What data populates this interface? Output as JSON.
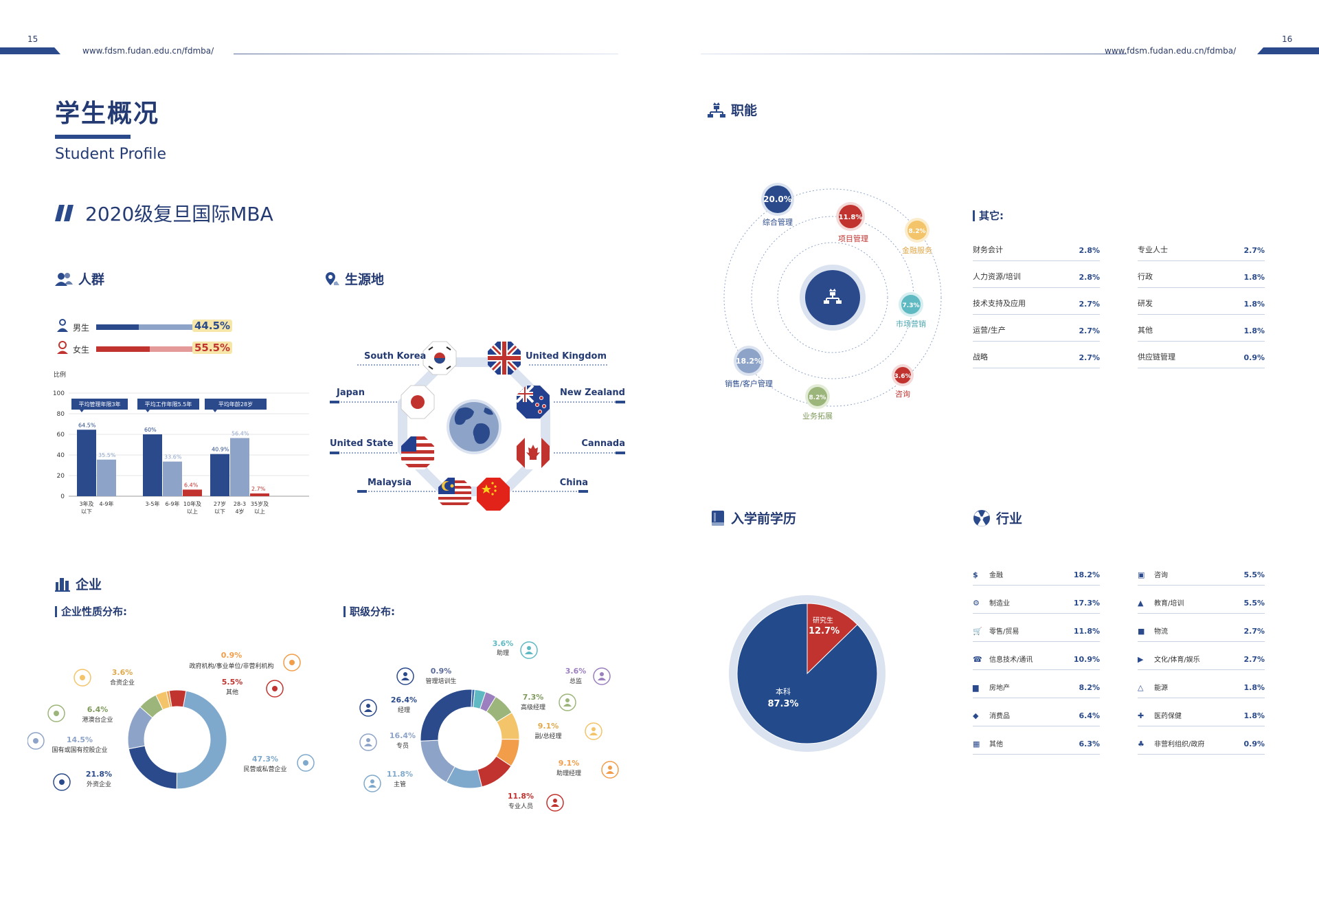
{
  "header": {
    "left_page": "15",
    "right_page": "16",
    "url_left": "www.fdsm.fudan.edu.cn/fdmba/",
    "url_right": "www.fdsm.fudan.edu.cn/fdmba/"
  },
  "title": {
    "cn": "学生概况",
    "en": "Student Profile"
  },
  "cohort": "2020级复旦国际MBA",
  "sections": {
    "crowd": "人群",
    "origin": "生源地",
    "function": "职能",
    "education": "入学前学历",
    "industry": "行业",
    "enterprise": "企业",
    "enterprise_nature": "企业性质分布:",
    "rank": "职级分布:",
    "others": "其它:"
  },
  "gender": {
    "male_label": "男生",
    "male_value": "44.5%",
    "male_pct": 44.5,
    "female_label": "女生",
    "female_value": "55.5%",
    "female_pct": 55.5
  },
  "colors": {
    "navy": "#2a4a8c",
    "steel": "#8ea3c8",
    "red": "#c0332f",
    "pink": "#e39a98",
    "highlight": "#f6e7a8",
    "teal": "#5fb9c2",
    "orange": "#f19d4a",
    "gold": "#f3c46a",
    "green": "#9cb57a",
    "lightblue": "#7fa9cc",
    "purple": "#9b7fbf"
  },
  "chart_data": [
    {
      "type": "bar",
      "id": "age-work-chart",
      "ylabel": "比例",
      "ylim": [
        0,
        100
      ],
      "yticks": [
        0,
        20,
        40,
        60,
        80,
        100
      ],
      "groups": [
        {
          "banner": "平均管理年限3年",
          "bars": [
            {
              "label": "3年及以下",
              "value": 64.5,
              "text": "64.5%",
              "color": "#2a4a8c"
            },
            {
              "label": "4-9年",
              "value": 35.5,
              "text": "35.5%",
              "color": "#8ea3c8"
            }
          ]
        },
        {
          "banner": "平均工作年限5.5年",
          "bars": [
            {
              "label": "3-5年",
              "value": 60,
              "text": "60%",
              "color": "#2a4a8c"
            },
            {
              "label": "6-9年",
              "value": 33.6,
              "text": "33.6%",
              "color": "#8ea3c8"
            },
            {
              "label": "10年及以上",
              "value": 6.4,
              "text": "6.4%",
              "color": "#c0332f"
            }
          ]
        },
        {
          "banner": "平均年龄28岁",
          "bars": [
            {
              "label": "27岁以下",
              "value": 40.9,
              "text": "40.9%",
              "color": "#2a4a8c"
            },
            {
              "label": "28-34岁",
              "value": 56.4,
              "text": "56.4%",
              "color": "#8ea3c8"
            },
            {
              "label": "35岁及以上",
              "value": 2.7,
              "text": "2.7%",
              "color": "#c0332f"
            }
          ]
        }
      ]
    },
    {
      "type": "pie",
      "id": "education-pie",
      "slices": [
        {
          "label": "研究生",
          "value": 12.7,
          "text": "12.7%",
          "color": "#c0332f"
        },
        {
          "label": "本科",
          "value": 87.3,
          "text": "87.3%",
          "color": "#234b8c"
        }
      ]
    },
    {
      "type": "pie",
      "id": "enterprise-donut",
      "slices": [
        {
          "label": "民营或私营企业",
          "value": 47.3,
          "text": "47.3%",
          "color": "#7fa9cc"
        },
        {
          "label": "外资企业",
          "value": 21.8,
          "text": "21.8%",
          "color": "#2a4a8c"
        },
        {
          "label": "国有或国有控股企业",
          "value": 14.5,
          "text": "14.5%",
          "color": "#8ea3c8"
        },
        {
          "label": "港澳台企业",
          "value": 6.4,
          "text": "6.4%",
          "color": "#9cb57a"
        },
        {
          "label": "合资企业",
          "value": 3.6,
          "text": "3.6%",
          "color": "#f3c46a"
        },
        {
          "label": "政府机构/事业单位/非营利机构",
          "value": 0.9,
          "text": "0.9%",
          "color": "#f19d4a"
        },
        {
          "label": "其他",
          "value": 5.5,
          "text": "5.5%",
          "color": "#c0332f"
        }
      ]
    },
    {
      "type": "pie",
      "id": "rank-donut",
      "slices": [
        {
          "label": "助理",
          "value": 3.6,
          "text": "3.6%",
          "color": "#5fb9c2"
        },
        {
          "label": "总监",
          "value": 3.6,
          "text": "3.6%",
          "color": "#9b7fbf"
        },
        {
          "label": "高级经理",
          "value": 7.3,
          "text": "7.3%",
          "color": "#9cb57a"
        },
        {
          "label": "副/总经理",
          "value": 9.1,
          "text": "9.1%",
          "color": "#f3c46a"
        },
        {
          "label": "助理经理",
          "value": 9.1,
          "text": "9.1%",
          "color": "#f19d4a"
        },
        {
          "label": "专业人员",
          "value": 11.8,
          "text": "11.8%",
          "color": "#c0332f"
        },
        {
          "label": "主管",
          "value": 11.8,
          "text": "11.8%",
          "color": "#7fa9cc"
        },
        {
          "label": "专员",
          "value": 16.4,
          "text": "16.4%",
          "color": "#8ea3c8"
        },
        {
          "label": "经理",
          "value": 26.4,
          "text": "26.4%",
          "color": "#2a4a8c"
        },
        {
          "label": "管理培训生",
          "value": 0.9,
          "text": "0.9%",
          "color": "#3d6fb0"
        }
      ]
    }
  ],
  "enterprise_labels": [
    {
      "text": "0.9%",
      "label": "政府机构/事业单位/非营利机构"
    },
    {
      "text": "5.5%",
      "label": "其他"
    },
    {
      "text": "3.6%",
      "label": "合资企业"
    },
    {
      "text": "6.4%",
      "label": "港澳台企业"
    },
    {
      "text": "14.5%",
      "label": "国有或国有控股企业"
    },
    {
      "text": "21.8%",
      "label": "外资企业"
    },
    {
      "text": "47.3%",
      "label": "民营或私营企业"
    }
  ],
  "rank_labels": [
    {
      "text": "3.6%",
      "label": "助理"
    },
    {
      "text": "0.9%",
      "label": "管理培训生"
    },
    {
      "text": "3.6%",
      "label": "总监"
    },
    {
      "text": "26.4%",
      "label": "经理"
    },
    {
      "text": "7.3%",
      "label": "高级经理"
    },
    {
      "text": "9.1%",
      "label": "副/总经理"
    },
    {
      "text": "16.4%",
      "label": "专员"
    },
    {
      "text": "9.1%",
      "label": "助理经理"
    },
    {
      "text": "11.8%",
      "label": "主管"
    },
    {
      "text": "11.8%",
      "label": "专业人员"
    }
  ],
  "countries": {
    "south_korea": "South Korea",
    "united_kingdom": "United Kingdom",
    "japan": "Japan",
    "new_zealand": "New Zealand",
    "united_state": "United State",
    "cannada": "Cannada",
    "malaysia": "Malaysia",
    "china": "China"
  },
  "functions": {
    "zonghe": {
      "text": "20.0%",
      "label": "综合管理"
    },
    "xiangmu": {
      "text": "11.8%",
      "label": "项目管理"
    },
    "jinrong": {
      "text": "8.2%",
      "label": "金融服务"
    },
    "shichang": {
      "text": "7.3%",
      "label": "市场营销"
    },
    "zixun": {
      "text": "3.6%",
      "label": "咨询"
    },
    "yewu": {
      "text": "8.2%",
      "label": "业务拓展"
    },
    "xiaoshou": {
      "text": "18.2%",
      "label": "销售/客户管理"
    }
  },
  "others_left": [
    {
      "label": "财务会计",
      "value": "2.8%"
    },
    {
      "label": "人力资源/培训",
      "value": "2.8%"
    },
    {
      "label": "技术支持及应用",
      "value": "2.7%"
    },
    {
      "label": "运营/生产",
      "value": "2.7%"
    },
    {
      "label": "战略",
      "value": "2.7%"
    }
  ],
  "others_right": [
    {
      "label": "专业人士",
      "value": "2.7%"
    },
    {
      "label": "行政",
      "value": "1.8%"
    },
    {
      "label": "研发",
      "value": "1.8%"
    },
    {
      "label": "其他",
      "value": "1.8%"
    },
    {
      "label": "供应链管理",
      "value": "0.9%"
    }
  ],
  "industry_left": [
    {
      "label": "金融",
      "value": "18.2%",
      "icon": "finance-icon"
    },
    {
      "label": "制造业",
      "value": "17.3%",
      "icon": "manufacturing-icon"
    },
    {
      "label": "零售/贸易",
      "value": "11.8%",
      "icon": "retail-icon"
    },
    {
      "label": "信息技术/通讯",
      "value": "10.9%",
      "icon": "phone-icon"
    },
    {
      "label": "房地产",
      "value": "8.2%",
      "icon": "building-icon"
    },
    {
      "label": "消费品",
      "value": "6.4%",
      "icon": "tag-icon"
    },
    {
      "label": "其他",
      "value": "6.3%",
      "icon": "grid-icon"
    }
  ],
  "industry_right": [
    {
      "label": "咨询",
      "value": "5.5%",
      "icon": "consulting-icon"
    },
    {
      "label": "教育/培训",
      "value": "5.5%",
      "icon": "graduation-icon"
    },
    {
      "label": "物流",
      "value": "2.7%",
      "icon": "truck-icon"
    },
    {
      "label": "文化/体育/娱乐",
      "value": "2.7%",
      "icon": "camera-icon"
    },
    {
      "label": "能源",
      "value": "1.8%",
      "icon": "energy-icon"
    },
    {
      "label": "医药保健",
      "value": "1.8%",
      "icon": "medical-icon"
    },
    {
      "label": "非营利组织/政府",
      "value": "0.9%",
      "icon": "nonprofit-icon"
    }
  ]
}
